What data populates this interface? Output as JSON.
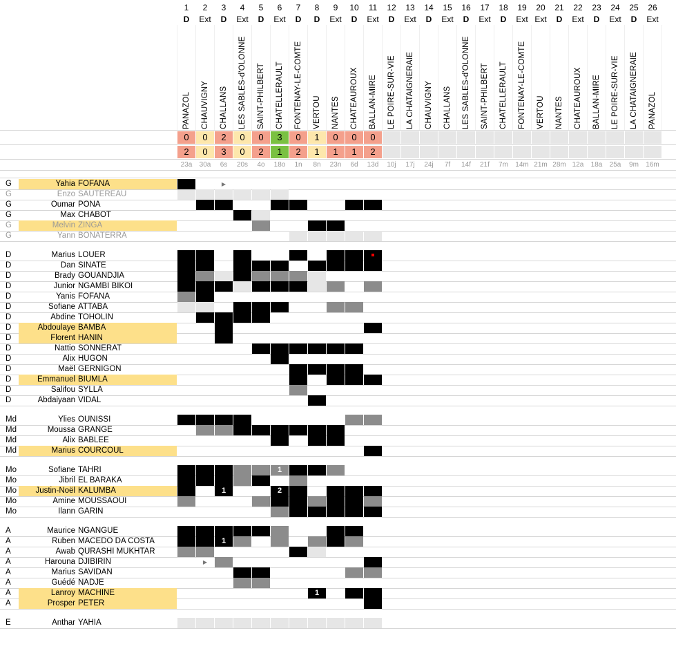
{
  "colors": {
    "loss": "#f4a08c",
    "draw": "#fde7ac",
    "win": "#7ac142",
    "black": "#000000",
    "grey": "#8c8c8c",
    "light": "#e6e6e6",
    "highlight": "#fde08a",
    "pending": "#e6e6e6"
  },
  "matches": [
    {
      "n": "1",
      "ha": "D",
      "opp": "PANAZOL",
      "us": "0",
      "them": "2",
      "res": "L",
      "date": "23a"
    },
    {
      "n": "2",
      "ha": "Ext",
      "opp": "CHAUVIGNY",
      "us": "0",
      "them": "0",
      "res": "D",
      "date": "30a"
    },
    {
      "n": "3",
      "ha": "D",
      "opp": "CHALLANS",
      "us": "2",
      "them": "3",
      "res": "L",
      "date": "6s"
    },
    {
      "n": "4",
      "ha": "Ext",
      "opp": "LES SABLES-d'OLONNE",
      "us": "0",
      "them": "0",
      "res": "D",
      "date": "20s"
    },
    {
      "n": "5",
      "ha": "D",
      "opp": "SAINT-PHILBERT",
      "us": "0",
      "them": "2",
      "res": "L",
      "date": "4o"
    },
    {
      "n": "6",
      "ha": "Ext",
      "opp": "CHATELLERAULT",
      "us": "3",
      "them": "1",
      "res": "W",
      "date": "18o"
    },
    {
      "n": "7",
      "ha": "D",
      "opp": "FONTENAY-LE-COMTE",
      "us": "0",
      "them": "2",
      "res": "L",
      "date": "1n"
    },
    {
      "n": "8",
      "ha": "D",
      "opp": "VERTOU",
      "us": "1",
      "them": "1",
      "res": "D",
      "date": "8n"
    },
    {
      "n": "9",
      "ha": "Ext",
      "opp": "NANTES",
      "us": "0",
      "them": "1",
      "res": "L",
      "date": "23n"
    },
    {
      "n": "10",
      "ha": "D",
      "opp": "CHATEAUROUX",
      "us": "0",
      "them": "1",
      "res": "L",
      "date": "6d"
    },
    {
      "n": "11",
      "ha": "Ext",
      "opp": "BALLAN-MIRE",
      "us": "0",
      "them": "2",
      "res": "L",
      "date": "13d"
    },
    {
      "n": "12",
      "ha": "D",
      "opp": "LE POIRE-SUR-VIE",
      "us": "",
      "them": "",
      "res": "",
      "date": "10j"
    },
    {
      "n": "13",
      "ha": "Ext",
      "opp": "LA CHATAIGNERAIE",
      "us": "",
      "them": "",
      "res": "",
      "date": "17j"
    },
    {
      "n": "14",
      "ha": "D",
      "opp": "CHAUVIGNY",
      "us": "",
      "them": "",
      "res": "",
      "date": "24j"
    },
    {
      "n": "15",
      "ha": "Ext",
      "opp": "CHALLANS",
      "us": "",
      "them": "",
      "res": "",
      "date": "7f"
    },
    {
      "n": "16",
      "ha": "D",
      "opp": "LES SABLES-d'OLONNE",
      "us": "",
      "them": "",
      "res": "",
      "date": "14f"
    },
    {
      "n": "17",
      "ha": "Ext",
      "opp": "SAINT-PHILBERT",
      "us": "",
      "them": "",
      "res": "",
      "date": "21f"
    },
    {
      "n": "18",
      "ha": "D",
      "opp": "CHATELLERAULT",
      "us": "",
      "them": "",
      "res": "",
      "date": "7m"
    },
    {
      "n": "19",
      "ha": "Ext",
      "opp": "FONTENAY-LE-COMTE",
      "us": "",
      "them": "",
      "res": "",
      "date": "14m"
    },
    {
      "n": "20",
      "ha": "Ext",
      "opp": "VERTOU",
      "us": "",
      "them": "",
      "res": "",
      "date": "21m"
    },
    {
      "n": "21",
      "ha": "D",
      "opp": "NANTES",
      "us": "",
      "them": "",
      "res": "",
      "date": "28m"
    },
    {
      "n": "22",
      "ha": "Ext",
      "opp": "CHATEAUROUX",
      "us": "",
      "them": "",
      "res": "",
      "date": "12a"
    },
    {
      "n": "23",
      "ha": "D",
      "opp": "BALLAN-MIRE",
      "us": "",
      "them": "",
      "res": "",
      "date": "18a"
    },
    {
      "n": "24",
      "ha": "Ext",
      "opp": "LE POIRE-SUR-VIE",
      "us": "",
      "them": "",
      "res": "",
      "date": "25a"
    },
    {
      "n": "25",
      "ha": "D",
      "opp": "LA CHATAIGNERAIE",
      "us": "",
      "them": "",
      "res": "",
      "date": "9m"
    },
    {
      "n": "26",
      "ha": "Ext",
      "opp": "PANAZOL",
      "us": "",
      "them": "",
      "res": "",
      "date": "16m"
    }
  ],
  "players": [
    {
      "pos": "G",
      "first": "Yahia",
      "last": "FOFANA",
      "hl": true,
      "sub": false,
      "cells": "K.T........",
      "marks": {}
    },
    {
      "pos": "G",
      "first": "Enzo",
      "last": "SAUTEREAU",
      "hl": false,
      "sub": true,
      "cells": "LLLLLL.....",
      "marks": {}
    },
    {
      "pos": "G",
      "first": "Oumar",
      "last": "PONA",
      "hl": false,
      "sub": false,
      "cells": ".KK..KK..KK",
      "marks": {}
    },
    {
      "pos": "G",
      "first": "Max",
      "last": "CHABOT",
      "hl": false,
      "sub": false,
      "cells": "...KL......",
      "marks": {}
    },
    {
      "pos": "G",
      "first": "Melvin",
      "last": "ZINGA",
      "hl": true,
      "sub": true,
      "cells": "....G..KK..",
      "marks": {}
    },
    {
      "pos": "G",
      "first": "Yann",
      "last": "BONATERRA",
      "hl": false,
      "sub": true,
      "cells": "......LLLLL",
      "marks": {}
    },
    {
      "gap": true
    },
    {
      "pos": "D",
      "first": "Marius",
      "last": "LOUER",
      "hl": false,
      "sub": false,
      "cells": "KK.K..K.KKK",
      "marks": {
        "10": "red"
      }
    },
    {
      "pos": "D",
      "first": "Dan",
      "last": "SINATE",
      "hl": false,
      "sub": false,
      "cells": "KK.KKK.KKKK",
      "marks": {}
    },
    {
      "pos": "D",
      "first": "Brady",
      "last": "GOUANDJIA",
      "hl": false,
      "sub": false,
      "cells": "KGLKGGGL...",
      "marks": {}
    },
    {
      "pos": "D",
      "first": "Junior",
      "last": "NGAMBI BIKOI",
      "hl": false,
      "sub": false,
      "cells": "KKKLKKKLG.G",
      "marks": {}
    },
    {
      "pos": "D",
      "first": "Yanis",
      "last": "FOFANA",
      "hl": false,
      "sub": false,
      "cells": "GK.........",
      "marks": {}
    },
    {
      "pos": "D",
      "first": "Sofiane",
      "last": "ATTABA",
      "hl": false,
      "sub": false,
      "cells": "LL.KKK..GG.",
      "marks": {}
    },
    {
      "pos": "D",
      "first": "Abdine",
      "last": "TOHOLIN",
      "hl": false,
      "sub": false,
      "cells": ".KKKK......",
      "marks": {}
    },
    {
      "pos": "D",
      "first": "Abdoulaye",
      "last": "BAMBA",
      "hl": true,
      "sub": false,
      "cells": "..K.......K",
      "marks": {}
    },
    {
      "pos": "D",
      "first": "Florent",
      "last": "HANIN",
      "hl": true,
      "sub": false,
      "cells": "..K........",
      "marks": {}
    },
    {
      "pos": "D",
      "first": "Nattio",
      "last": "SONNERAT",
      "hl": false,
      "sub": false,
      "cells": "....KKKKKK.",
      "marks": {}
    },
    {
      "pos": "D",
      "first": "Alix",
      "last": "HUGON",
      "hl": false,
      "sub": false,
      "cells": ".....K.....",
      "marks": {}
    },
    {
      "pos": "D",
      "first": "Maël",
      "last": "GERNIGON",
      "hl": false,
      "sub": false,
      "cells": "......KKKK.",
      "marks": {}
    },
    {
      "pos": "D",
      "first": "Emmanuel",
      "last": "BIUMLA",
      "hl": true,
      "sub": false,
      "cells": "......K.KKK",
      "marks": {}
    },
    {
      "pos": "D",
      "first": "Salifou",
      "last": "SYLLA",
      "hl": false,
      "sub": false,
      "cells": "......G....",
      "marks": {}
    },
    {
      "pos": "D",
      "first": "Abdaiyaan",
      "last": "VIDAL",
      "hl": false,
      "sub": false,
      "cells": ".......K...",
      "marks": {}
    },
    {
      "gap": true
    },
    {
      "pos": "Md",
      "first": "Ylies",
      "last": "OUNISSI",
      "hl": false,
      "sub": false,
      "cells": "KKKK.....GG",
      "marks": {}
    },
    {
      "pos": "Md",
      "first": "Moussa",
      "last": "GRANGE",
      "hl": false,
      "sub": false,
      "cells": ".GGKKKKKK..",
      "marks": {}
    },
    {
      "pos": "Md",
      "first": "Alix",
      "last": "BABLEE",
      "hl": false,
      "sub": false,
      "cells": ".....K.KK..",
      "marks": {}
    },
    {
      "pos": "Md",
      "first": "Marius",
      "last": "COURCOUL",
      "hl": true,
      "sub": false,
      "cells": "..........K",
      "marks": {}
    },
    {
      "gap": true
    },
    {
      "pos": "Mo",
      "first": "Sofiane",
      "last": "TAHRI",
      "hl": false,
      "sub": false,
      "cells": "KKKGGGKKG..",
      "marks": {
        "5": "1"
      }
    },
    {
      "pos": "Mo",
      "first": "Jibril",
      "last": "EL BARAKA",
      "hl": false,
      "sub": false,
      "cells": "KKKGK.G....",
      "marks": {}
    },
    {
      "pos": "Mo",
      "first": "Justin-Noël",
      "last": "KALUMBA",
      "hl": true,
      "sub": false,
      "cells": "K.K..KK.KKK",
      "marks": {
        "2": "1",
        "5": "2"
      }
    },
    {
      "pos": "Mo",
      "first": "Amine",
      "last": "MOUSSAOUI",
      "hl": false,
      "sub": false,
      "cells": "G...GKKGKKG",
      "marks": {}
    },
    {
      "pos": "Mo",
      "first": "Ilann",
      "last": "GARIN",
      "hl": false,
      "sub": false,
      "cells": ".....GKKKKK",
      "marks": {}
    },
    {
      "gap": true
    },
    {
      "pos": "A",
      "first": "Maurice",
      "last": "NGANGUE",
      "hl": false,
      "sub": false,
      "cells": "KKKKKG..KK.",
      "marks": {}
    },
    {
      "pos": "A",
      "first": "Ruben",
      "last": "MACEDO DA COSTA",
      "hl": false,
      "sub": false,
      "cells": "KKKG.G.GKG.",
      "marks": {
        "2": "1"
      }
    },
    {
      "pos": "A",
      "first": "Awab",
      "last": "QURASHI MUKHTAR",
      "hl": false,
      "sub": false,
      "cells": "GG....KL...",
      "marks": {}
    },
    {
      "pos": "A",
      "first": "Harouna",
      "last": "DJIBIRIN",
      "hl": false,
      "sub": false,
      "cells": ".TG.......K",
      "marks": {}
    },
    {
      "pos": "A",
      "first": "Marius",
      "last": "SAVIDAN",
      "hl": false,
      "sub": false,
      "cells": "...KK....GG",
      "marks": {}
    },
    {
      "pos": "A",
      "first": "Guédé",
      "last": "NADJE",
      "hl": false,
      "sub": false,
      "cells": "...GG......",
      "marks": {}
    },
    {
      "pos": "A",
      "first": "Lanroy",
      "last": "MACHINE",
      "hl": true,
      "sub": false,
      "cells": ".......K.KK",
      "marks": {
        "7": "1"
      }
    },
    {
      "pos": "A",
      "first": "Prosper",
      "last": "PETER",
      "hl": true,
      "sub": false,
      "cells": "..........K",
      "marks": {}
    },
    {
      "gap": true
    },
    {
      "pos": "E",
      "first": "Anthar",
      "last": "YAHIA",
      "hl": false,
      "sub": false,
      "cells": "LLLLLLLLLLL",
      "marks": {}
    }
  ]
}
